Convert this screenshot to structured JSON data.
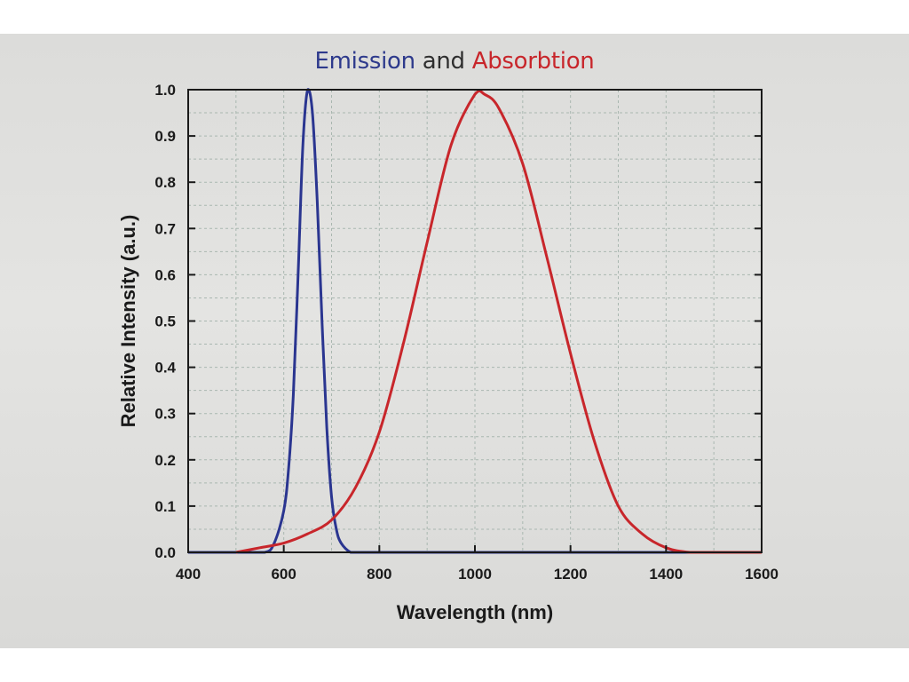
{
  "chart_data": {
    "type": "line",
    "title_parts": [
      "Emission",
      "and",
      "Absorbtion"
    ],
    "xlabel": "Wavelength (nm)",
    "ylabel": "Relative Intensity (a.u.)",
    "xlim": [
      400,
      1600
    ],
    "ylim": [
      0.0,
      1.0
    ],
    "x_ticks": [
      "400",
      "600",
      "800",
      "1000",
      "1200",
      "1400",
      "1600"
    ],
    "y_ticks": [
      "0.0",
      "0.1",
      "0.2",
      "0.3",
      "0.4",
      "0.5",
      "0.6",
      "0.7",
      "0.8",
      "0.9",
      "1.0"
    ],
    "grid": true,
    "series": [
      {
        "color": "#2a3590",
        "x": [
          400,
          500,
          560,
          580,
          600,
          610,
          620,
          630,
          640,
          650,
          660,
          670,
          680,
          690,
          700,
          710,
          720,
          740,
          760,
          800,
          900,
          1600
        ],
        "y": [
          0.0,
          0.0,
          0.0,
          0.02,
          0.09,
          0.18,
          0.34,
          0.6,
          0.88,
          1.0,
          0.95,
          0.76,
          0.5,
          0.27,
          0.12,
          0.05,
          0.02,
          0.0,
          0.0,
          0.0,
          0.0,
          0.0
        ]
      },
      {
        "color": "#c8262b",
        "x": [
          500,
          550,
          600,
          650,
          700,
          750,
          800,
          850,
          900,
          950,
          1000,
          1020,
          1050,
          1100,
          1150,
          1200,
          1250,
          1300,
          1350,
          1400,
          1450,
          1500,
          1600
        ],
        "y": [
          0.0,
          0.01,
          0.02,
          0.04,
          0.07,
          0.14,
          0.26,
          0.45,
          0.67,
          0.88,
          0.99,
          0.99,
          0.96,
          0.84,
          0.64,
          0.43,
          0.24,
          0.1,
          0.04,
          0.01,
          0.0,
          0.0,
          0.0
        ]
      }
    ]
  }
}
